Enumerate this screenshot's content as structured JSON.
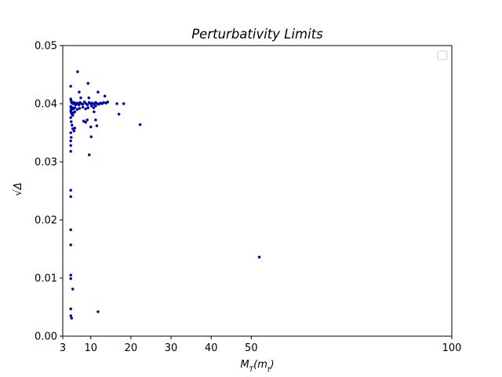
{
  "chart_data": {
    "type": "scatter",
    "title": "Perturbativity Limits",
    "xlabel": "M_T(m_t)",
    "ylabel": "√Δ",
    "xlim": [
      3,
      100
    ],
    "ylim": [
      0.0,
      0.05
    ],
    "x_ticks": [
      3,
      10,
      20,
      30,
      40,
      50,
      100
    ],
    "x_tick_labels": [
      "3",
      "10",
      "20",
      "30",
      "40",
      "50",
      "100"
    ],
    "y_ticks": [
      0.0,
      0.01,
      0.02,
      0.03,
      0.04,
      0.05
    ],
    "y_tick_labels": [
      "0.00",
      "0.01",
      "0.02",
      "0.03",
      "0.04",
      "0.05"
    ],
    "grid": false,
    "legend": {
      "placement": "top-right",
      "entries": []
    },
    "marker_color": "#0000cc",
    "series": [
      {
        "points": [
          [
            6.7,
            0.0455
          ],
          [
            5.0,
            0.043
          ],
          [
            9.3,
            0.0435
          ],
          [
            7.1,
            0.042
          ],
          [
            11.8,
            0.042
          ],
          [
            7.5,
            0.041
          ],
          [
            9.5,
            0.041
          ],
          [
            13.5,
            0.0413
          ],
          [
            5.0,
            0.0408
          ],
          [
            5.1,
            0.0405
          ],
          [
            5.2,
            0.0403
          ],
          [
            5.3,
            0.0401
          ],
          [
            5.5,
            0.04
          ],
          [
            5.8,
            0.0402
          ],
          [
            6.0,
            0.04
          ],
          [
            6.2,
            0.0398
          ],
          [
            6.5,
            0.0401
          ],
          [
            6.8,
            0.04
          ],
          [
            7.0,
            0.0398
          ],
          [
            7.3,
            0.0402
          ],
          [
            7.6,
            0.04
          ],
          [
            8.0,
            0.0399
          ],
          [
            8.4,
            0.0403
          ],
          [
            8.8,
            0.04
          ],
          [
            9.2,
            0.0398
          ],
          [
            9.6,
            0.0402
          ],
          [
            10.0,
            0.04
          ],
          [
            10.4,
            0.0401
          ],
          [
            10.8,
            0.0399
          ],
          [
            11.2,
            0.0402
          ],
          [
            11.6,
            0.04
          ],
          [
            12.0,
            0.0399
          ],
          [
            12.4,
            0.0401
          ],
          [
            12.8,
            0.04
          ],
          [
            13.2,
            0.0402
          ],
          [
            13.8,
            0.0401
          ],
          [
            14.2,
            0.0403
          ],
          [
            16.5,
            0.04
          ],
          [
            18.2,
            0.04
          ],
          [
            5.0,
            0.0395
          ],
          [
            5.1,
            0.0392
          ],
          [
            5.2,
            0.039
          ],
          [
            5.4,
            0.0393
          ],
          [
            5.6,
            0.0391
          ],
          [
            6.0,
            0.0393
          ],
          [
            6.6,
            0.039
          ],
          [
            7.2,
            0.0392
          ],
          [
            8.0,
            0.0394
          ],
          [
            8.7,
            0.0391
          ],
          [
            9.3,
            0.0393
          ],
          [
            10.2,
            0.0396
          ],
          [
            10.7,
            0.0393
          ],
          [
            11.2,
            0.0396
          ],
          [
            5.0,
            0.0388
          ],
          [
            5.1,
            0.0385
          ],
          [
            5.3,
            0.0382
          ],
          [
            5.5,
            0.038
          ],
          [
            5.6,
            0.0384
          ],
          [
            6.0,
            0.0386
          ],
          [
            10.8,
            0.0386
          ],
          [
            17.0,
            0.0382
          ],
          [
            5.0,
            0.0376
          ],
          [
            5.1,
            0.0369
          ],
          [
            5.3,
            0.0363
          ],
          [
            5.5,
            0.0357
          ],
          [
            5.8,
            0.0353
          ],
          [
            6.0,
            0.0358
          ],
          [
            8.2,
            0.037
          ],
          [
            8.7,
            0.0368
          ],
          [
            9.1,
            0.0372
          ],
          [
            11.2,
            0.0372
          ],
          [
            11.5,
            0.0362
          ],
          [
            22.3,
            0.0364
          ],
          [
            10.0,
            0.036
          ],
          [
            10.1,
            0.0343
          ],
          [
            5.0,
            0.035
          ],
          [
            5.1,
            0.0342
          ],
          [
            5.0,
            0.0336
          ],
          [
            5.0,
            0.0328
          ],
          [
            5.0,
            0.0318
          ],
          [
            9.6,
            0.0312
          ],
          [
            5.0,
            0.0251
          ],
          [
            5.0,
            0.024
          ],
          [
            5.0,
            0.0183
          ],
          [
            5.0,
            0.0157
          ],
          [
            5.0,
            0.0105
          ],
          [
            5.0,
            0.0099
          ],
          [
            5.5,
            0.0081
          ],
          [
            52.0,
            0.0136
          ],
          [
            5.0,
            0.0047
          ],
          [
            5.0,
            0.0035
          ],
          [
            5.2,
            0.0031
          ],
          [
            11.8,
            0.0042
          ]
        ]
      }
    ]
  }
}
